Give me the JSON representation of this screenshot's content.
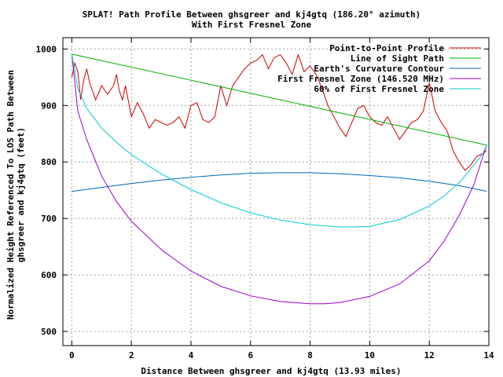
{
  "chart_data": {
    "type": "line",
    "title": "SPLAT! Path Profile Between ghsgreer and kj4gtq (186.20° azimuth)",
    "subtitle": "With First Fresnel Zone",
    "xlabel": "Distance Between ghsgreer and kj4gtq (13.93 miles)",
    "ylabel_line1": "Normalized Height Referenced To LOS Path Between",
    "ylabel_line2": "ghsgreer and kj4gtq (feet)",
    "xlim": [
      -0.3,
      14
    ],
    "ylim": [
      475,
      1020
    ],
    "x_ticks": [
      0,
      2,
      4,
      6,
      8,
      10,
      12,
      14
    ],
    "y_ticks": [
      500,
      600,
      700,
      800,
      900,
      1000
    ],
    "grid": true,
    "legend_position": "top-right",
    "series": [
      {
        "name": "Point-to-Point Profile",
        "color": "#cc0000",
        "x": [
          0,
          0.1,
          0.2,
          0.3,
          0.4,
          0.5,
          0.6,
          0.8,
          1.0,
          1.2,
          1.4,
          1.5,
          1.6,
          1.7,
          1.8,
          2.0,
          2.2,
          2.4,
          2.6,
          2.8,
          3.0,
          3.2,
          3.4,
          3.6,
          3.8,
          4.0,
          4.2,
          4.4,
          4.6,
          4.8,
          5.0,
          5.2,
          5.4,
          5.6,
          5.8,
          6.0,
          6.2,
          6.4,
          6.6,
          6.8,
          7.0,
          7.2,
          7.4,
          7.6,
          7.8,
          8.0,
          8.2,
          8.4,
          8.6,
          8.8,
          9.0,
          9.2,
          9.4,
          9.6,
          9.8,
          10.0,
          10.2,
          10.4,
          10.6,
          10.8,
          11.0,
          11.2,
          11.4,
          11.6,
          11.8,
          12.0,
          12.2,
          12.4,
          12.6,
          12.8,
          13.0,
          13.2,
          13.4,
          13.6,
          13.8,
          13.93
        ],
        "values": [
          950,
          975,
          960,
          910,
          945,
          965,
          940,
          910,
          935,
          920,
          935,
          955,
          925,
          910,
          935,
          880,
          905,
          885,
          860,
          875,
          870,
          865,
          870,
          880,
          860,
          900,
          905,
          875,
          870,
          880,
          935,
          900,
          935,
          950,
          965,
          975,
          980,
          990,
          965,
          985,
          990,
          975,
          955,
          990,
          960,
          970,
          955,
          930,
          900,
          880,
          860,
          845,
          870,
          895,
          900,
          880,
          870,
          865,
          880,
          860,
          840,
          855,
          870,
          875,
          890,
          940,
          890,
          870,
          855,
          820,
          800,
          785,
          795,
          810,
          815,
          820
        ]
      },
      {
        "name": "Line of Sight Path",
        "color": "#00b000",
        "x": [
          0,
          13.93
        ],
        "values": [
          991,
          830
        ]
      },
      {
        "name": "Earth's Curvature Contour",
        "color": "#0066bb",
        "x": [
          0,
          1,
          2,
          3,
          4,
          5,
          6,
          7,
          8,
          9,
          10,
          11,
          12,
          13,
          13.93
        ],
        "values": [
          748,
          755,
          762,
          768,
          773,
          777,
          780,
          781,
          781,
          779,
          776,
          772,
          766,
          758,
          748
        ]
      },
      {
        "name": "First Fresnel Zone (146.520 MHz)",
        "color": "#9900cc",
        "x": [
          0,
          0.2,
          0.5,
          1,
          1.5,
          2,
          3,
          4,
          5,
          6,
          7,
          8,
          8.5,
          9,
          10,
          11,
          12,
          12.5,
          13,
          13.5,
          13.8,
          13.93
        ],
        "values": [
          991,
          890,
          840,
          775,
          730,
          695,
          645,
          607,
          580,
          563,
          553,
          549,
          549,
          551,
          562,
          584,
          625,
          660,
          705,
          760,
          810,
          830
        ]
      },
      {
        "name": "60% of First Fresnel Zone",
        "color": "#00cccc",
        "x": [
          0,
          0.2,
          0.5,
          1,
          1.5,
          2,
          3,
          4,
          5,
          6,
          7,
          8,
          9,
          9.5,
          10,
          11,
          12,
          12.5,
          13,
          13.5,
          13.8,
          13.93
        ],
        "values": [
          991,
          930,
          895,
          860,
          835,
          813,
          779,
          751,
          728,
          710,
          697,
          689,
          685,
          685,
          686,
          698,
          722,
          740,
          763,
          795,
          815,
          830
        ]
      }
    ]
  }
}
